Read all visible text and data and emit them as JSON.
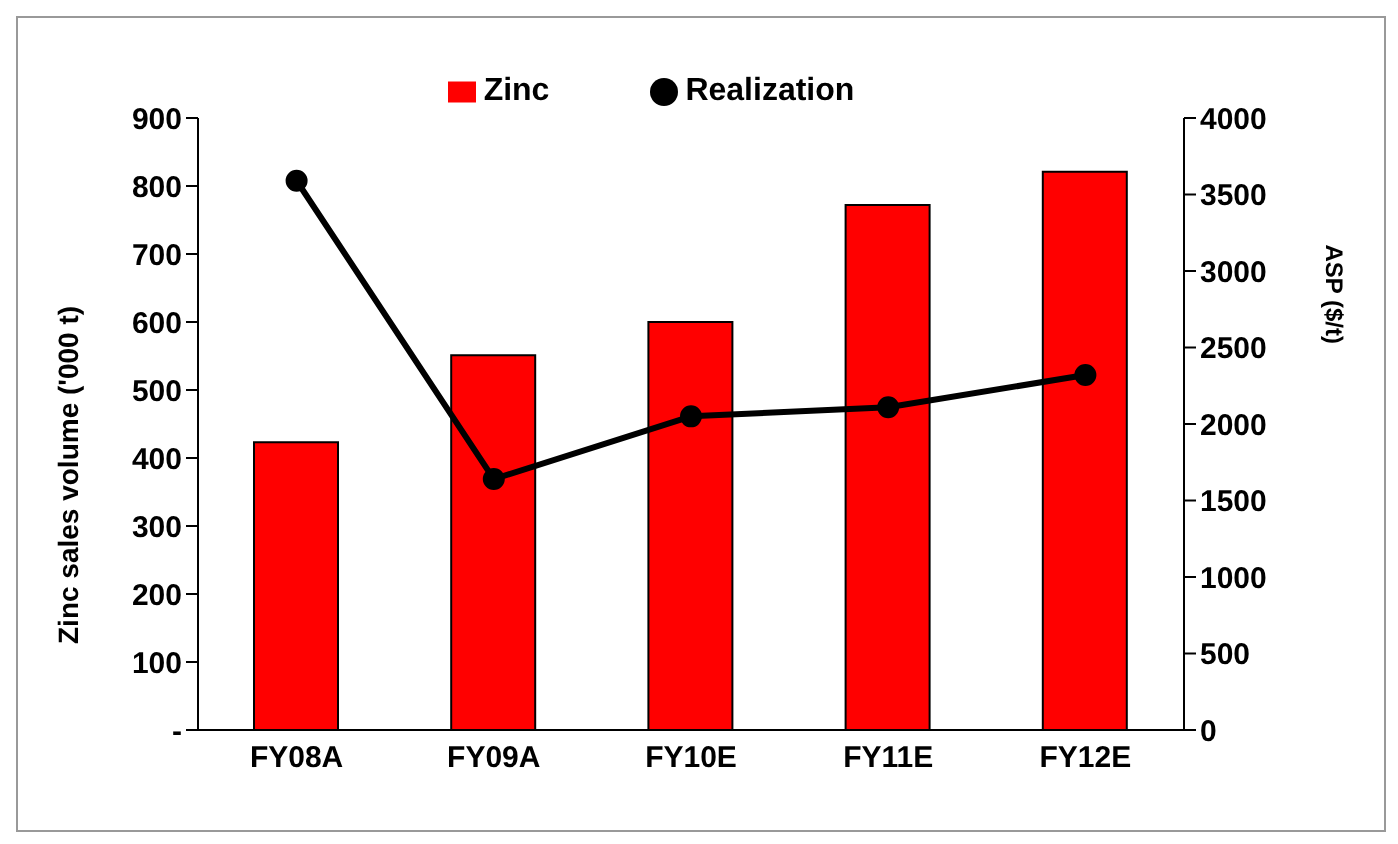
{
  "chart_data": {
    "type": "bar",
    "categories": [
      "FY08A",
      "FY09A",
      "FY10E",
      "FY11E",
      "FY12E"
    ],
    "series": [
      {
        "name": "Zinc",
        "color": "#ff0000",
        "values": [
          423,
          551,
          600,
          772,
          821
        ]
      },
      {
        "name": "Realization",
        "type": "line",
        "axis": "y2",
        "color": "#000000",
        "values": [
          3590,
          1640,
          2050,
          2110,
          2320
        ]
      }
    ],
    "ylabel": "Zinc sales volume ('000 t)",
    "y2label": "ASP ($/t)",
    "ylim": [
      0,
      900
    ],
    "yticks": [
      {
        "value": 0,
        "label": "-"
      },
      100,
      200,
      300,
      400,
      500,
      600,
      700,
      800,
      900
    ],
    "y2lim": [
      0,
      4000
    ],
    "y2ticks": [
      0,
      500,
      1000,
      1500,
      2000,
      2500,
      3000,
      3500,
      4000
    ],
    "legend": "top",
    "marker": "circle",
    "grid": false
  }
}
